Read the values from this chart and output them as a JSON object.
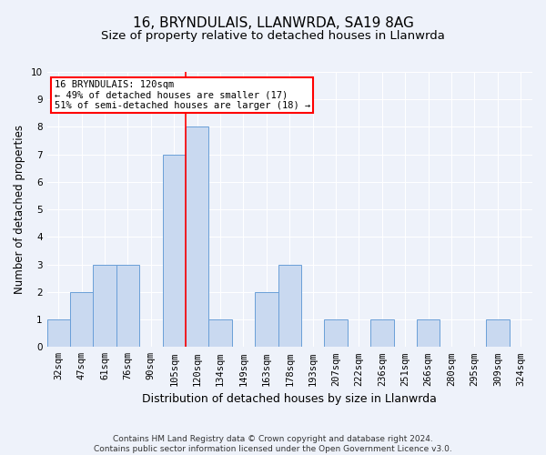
{
  "title1": "16, BRYNDULAIS, LLANWRDA, SA19 8AG",
  "title2": "Size of property relative to detached houses in Llanwrda",
  "xlabel": "Distribution of detached houses by size in Llanwrda",
  "ylabel": "Number of detached properties",
  "categories": [
    "32sqm",
    "47sqm",
    "61sqm",
    "76sqm",
    "90sqm",
    "105sqm",
    "120sqm",
    "134sqm",
    "149sqm",
    "163sqm",
    "178sqm",
    "193sqm",
    "207sqm",
    "222sqm",
    "236sqm",
    "251sqm",
    "266sqm",
    "280sqm",
    "295sqm",
    "309sqm",
    "324sqm"
  ],
  "values": [
    1,
    2,
    3,
    3,
    0,
    7,
    8,
    1,
    0,
    2,
    3,
    0,
    1,
    0,
    1,
    0,
    1,
    0,
    0,
    1,
    0
  ],
  "bar_color": "#c9d9f0",
  "bar_edge_color": "#6a9fd8",
  "annotation_text": "16 BRYNDULAIS: 120sqm\n← 49% of detached houses are smaller (17)\n51% of semi-detached houses are larger (18) →",
  "annotation_box_color": "white",
  "annotation_box_edge_color": "red",
  "red_line_color": "red",
  "ylim": [
    0,
    10
  ],
  "yticks": [
    0,
    1,
    2,
    3,
    4,
    5,
    6,
    7,
    8,
    9,
    10
  ],
  "footnote": "Contains HM Land Registry data © Crown copyright and database right 2024.\nContains public sector information licensed under the Open Government Licence v3.0.",
  "background_color": "#eef2fa",
  "grid_color": "#ffffff",
  "title1_fontsize": 11,
  "title2_fontsize": 9.5,
  "xlabel_fontsize": 9,
  "ylabel_fontsize": 8.5,
  "tick_fontsize": 7.5,
  "footnote_fontsize": 6.5
}
